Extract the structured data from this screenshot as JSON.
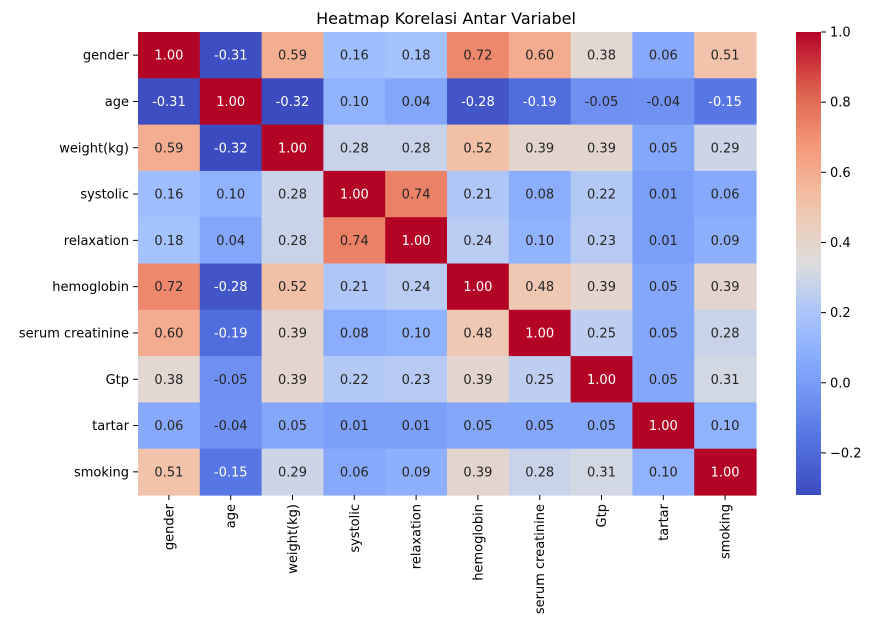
{
  "chart_data": {
    "type": "heatmap",
    "title": "Heatmap Korelasi Antar Variabel",
    "colormap": "coolwarm",
    "annot": true,
    "annot_format": "0.00",
    "rows": [
      "gender",
      "age",
      "weight(kg)",
      "systolic",
      "relaxation",
      "hemoglobin",
      "serum creatinine",
      "Gtp",
      "tartar",
      "smoking"
    ],
    "columns": [
      "gender",
      "age",
      "weight(kg)",
      "systolic",
      "relaxation",
      "hemoglobin",
      "serum creatinine",
      "Gtp",
      "tartar",
      "smoking"
    ],
    "values": [
      [
        1.0,
        -0.31,
        0.59,
        0.16,
        0.18,
        0.72,
        0.6,
        0.38,
        0.06,
        0.51
      ],
      [
        -0.31,
        1.0,
        -0.32,
        0.1,
        0.04,
        -0.28,
        -0.19,
        -0.05,
        -0.04,
        -0.15
      ],
      [
        0.59,
        -0.32,
        1.0,
        0.28,
        0.28,
        0.52,
        0.39,
        0.39,
        0.05,
        0.29
      ],
      [
        0.16,
        0.1,
        0.28,
        1.0,
        0.74,
        0.21,
        0.08,
        0.22,
        0.01,
        0.06
      ],
      [
        0.18,
        0.04,
        0.28,
        0.74,
        1.0,
        0.24,
        0.1,
        0.23,
        0.01,
        0.09
      ],
      [
        0.72,
        -0.28,
        0.52,
        0.21,
        0.24,
        1.0,
        0.48,
        0.39,
        0.05,
        0.39
      ],
      [
        0.6,
        -0.19,
        0.39,
        0.08,
        0.1,
        0.48,
        1.0,
        0.25,
        0.05,
        0.28
      ],
      [
        0.38,
        -0.05,
        0.39,
        0.22,
        0.23,
        0.39,
        0.25,
        1.0,
        0.05,
        0.31
      ],
      [
        0.06,
        -0.04,
        0.05,
        0.01,
        0.01,
        0.05,
        0.05,
        0.05,
        1.0,
        0.1
      ],
      [
        0.51,
        -0.15,
        0.29,
        0.06,
        0.09,
        0.39,
        0.28,
        0.31,
        0.1,
        1.0
      ]
    ],
    "colorbar": {
      "range": [
        -0.32,
        1.0
      ],
      "ticks": [
        -0.2,
        0.0,
        0.2,
        0.4,
        0.6,
        0.8,
        1.0
      ],
      "tick_labels": [
        "−0.2",
        "0.0",
        "0.2",
        "0.4",
        "0.6",
        "0.8",
        "1.0"
      ]
    }
  }
}
